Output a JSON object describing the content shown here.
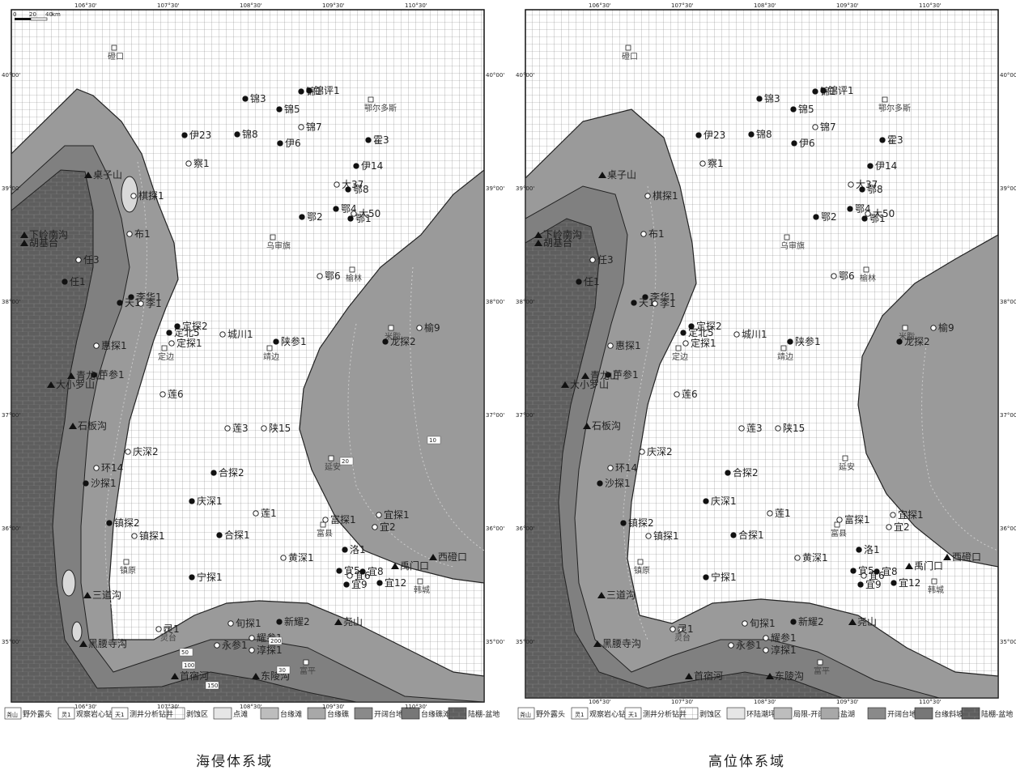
{
  "scale_label": "km",
  "scale_ticks": [
    "0",
    "20",
    "40"
  ],
  "lon_ticks": [
    "106°30'",
    "107°",
    "107°30'",
    "108°",
    "108°30'",
    "109°",
    "109°30'",
    "110°",
    "110°30'"
  ],
  "lat_ticks": [
    "40°00'",
    "39°00'",
    "38°00'",
    "37°00'",
    "36°00'",
    "35°00'"
  ],
  "captions": {
    "left": "海侵体系域",
    "right": "高位体系域"
  },
  "legend_left": [
    "野外露头",
    "观察岩心钻井",
    "测井分析钻井",
    "剥蚀区",
    "点滩",
    "台缘滩",
    "台缘礁",
    "开阔台地",
    "台缘礁滩",
    "陆棚-盆地"
  ],
  "legend_right": [
    "野外露头",
    "观察岩心钻井",
    "测井分析钻井",
    "剥蚀区",
    "环陆潮坪",
    "局限-开阔台地",
    "盐湖",
    "开阔台地",
    "台缘斜坡",
    "陆棚-盆地"
  ],
  "legend_symbols": {
    "outcrop": "尧山",
    "core": "灵1",
    "log": "天1"
  },
  "cities": [
    "磴口",
    "鄂尔多斯",
    "乌审旗",
    "榆林",
    "米脂",
    "定边",
    "靖边",
    "延安",
    "富县",
    "镇原",
    "韩城",
    "灵台",
    "富平"
  ],
  "wells_left": [
    "锦1",
    "锦评1",
    "锦3",
    "锦5",
    "锦7",
    "锦8",
    "伊23",
    "伊6",
    "霍3",
    "伊14",
    "察1",
    "大37",
    "鄂8",
    "鄂4",
    "大50",
    "鄂2",
    "鄂1",
    "鄂6",
    "榆9",
    "龙探2",
    "棋探1",
    "布1",
    "任3",
    "任1",
    "李华1",
    "李1",
    "天1",
    "定探2",
    "定北5",
    "定探1",
    "城川1",
    "陕参1",
    "惠探1",
    "芦参1",
    "莲6",
    "莲3",
    "陕15",
    "庆深2",
    "环14",
    "沙探1",
    "合探2",
    "庆深1",
    "莲1",
    "镇探2",
    "镇探1",
    "合探1",
    "富探1",
    "宜探1",
    "宜2",
    "洛1",
    "黄深1",
    "宜5",
    "宜6",
    "宜8",
    "宜9",
    "宜12",
    "宁探1",
    "新耀2",
    "旬探1",
    "耀参1",
    "永参1",
    "淳探1",
    "灵1"
  ],
  "outcrops": [
    "桌子山",
    "下岭南沟",
    "胡基台",
    "青龙山",
    "大小罗山",
    "石板沟",
    "三道沟",
    "黑腰寺沟",
    "首宿河",
    "东陵沟",
    "尧山",
    "禹门口",
    "西磴口"
  ],
  "contours": [
    "50",
    "100",
    "150",
    "200",
    "30",
    "20",
    "10"
  ]
}
